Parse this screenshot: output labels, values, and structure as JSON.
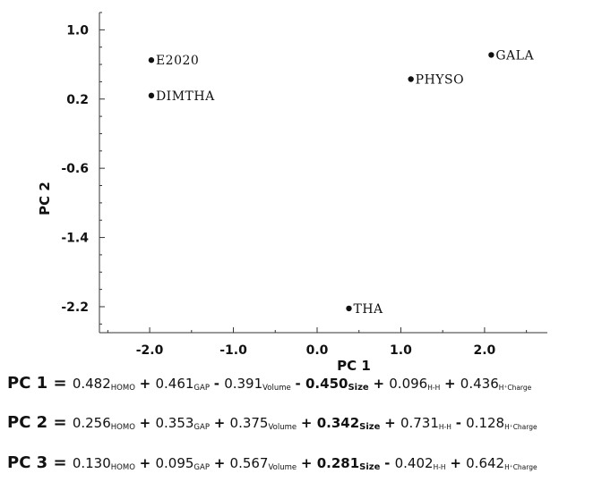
{
  "chart_data": {
    "type": "scatter",
    "xlabel": "PC 1",
    "ylabel": "PC 2",
    "xlim": [
      -2.6,
      2.75
    ],
    "ylim": [
      -2.5,
      1.2
    ],
    "x_ticks": [
      -2.0,
      -1.0,
      0.0,
      1.0,
      2.0
    ],
    "x_tick_labels": [
      "-2.0",
      "-1.0",
      "0.0",
      "1.0",
      "2.0"
    ],
    "y_ticks": [
      1.0,
      0.2,
      -0.6,
      -1.4,
      -2.2
    ],
    "y_tick_labels": [
      "1.0",
      "0.2",
      "-0.6",
      "-1.4",
      "-2.2"
    ],
    "points": [
      {
        "label": "E2020",
        "x": -1.98,
        "y": 0.65
      },
      {
        "label": "DIMTHA",
        "x": -1.98,
        "y": 0.24
      },
      {
        "label": "PHYSO",
        "x": 1.12,
        "y": 0.43
      },
      {
        "label": "GALA",
        "x": 2.08,
        "y": 0.71
      },
      {
        "label": "THA",
        "x": 0.38,
        "y": -2.22
      }
    ],
    "grid": false
  },
  "equations": [
    {
      "lhs": "PC 1",
      "terms": [
        {
          "sign": "=",
          "coef": "0.482",
          "var": "HOMO"
        },
        {
          "sign": "+",
          "coef": "0.461",
          "var": "GAP"
        },
        {
          "sign": "-",
          "coef": "0.391",
          "var": "Volume"
        },
        {
          "sign": "-",
          "coef": "0.450",
          "var": "Size"
        },
        {
          "sign": "+",
          "coef": "0.096",
          "var": "H-H"
        },
        {
          "sign": "+",
          "coef": "0.436",
          "var": "H⁺Charge"
        }
      ]
    },
    {
      "lhs": "PC 2",
      "terms": [
        {
          "sign": "=",
          "coef": "0.256",
          "var": "HOMO"
        },
        {
          "sign": "+",
          "coef": "0.353",
          "var": "GAP"
        },
        {
          "sign": "+",
          "coef": "0.375",
          "var": "Volume"
        },
        {
          "sign": "+",
          "coef": "0.342",
          "var": "Size"
        },
        {
          "sign": "+",
          "coef": "0.731",
          "var": "H-H"
        },
        {
          "sign": "-",
          "coef": "0.128",
          "var": "H⁺Charge"
        }
      ]
    },
    {
      "lhs": "PC 3",
      "terms": [
        {
          "sign": "=",
          "coef": "0.130",
          "var": "HOMO"
        },
        {
          "sign": "+",
          "coef": "0.095",
          "var": "GAP"
        },
        {
          "sign": "+",
          "coef": "0.567",
          "var": "Volume"
        },
        {
          "sign": "+",
          "coef": "0.281",
          "var": "Size"
        },
        {
          "sign": "-",
          "coef": "0.402",
          "var": "H-H"
        },
        {
          "sign": "+",
          "coef": "0.642",
          "var": "H⁺Charge"
        }
      ]
    }
  ]
}
